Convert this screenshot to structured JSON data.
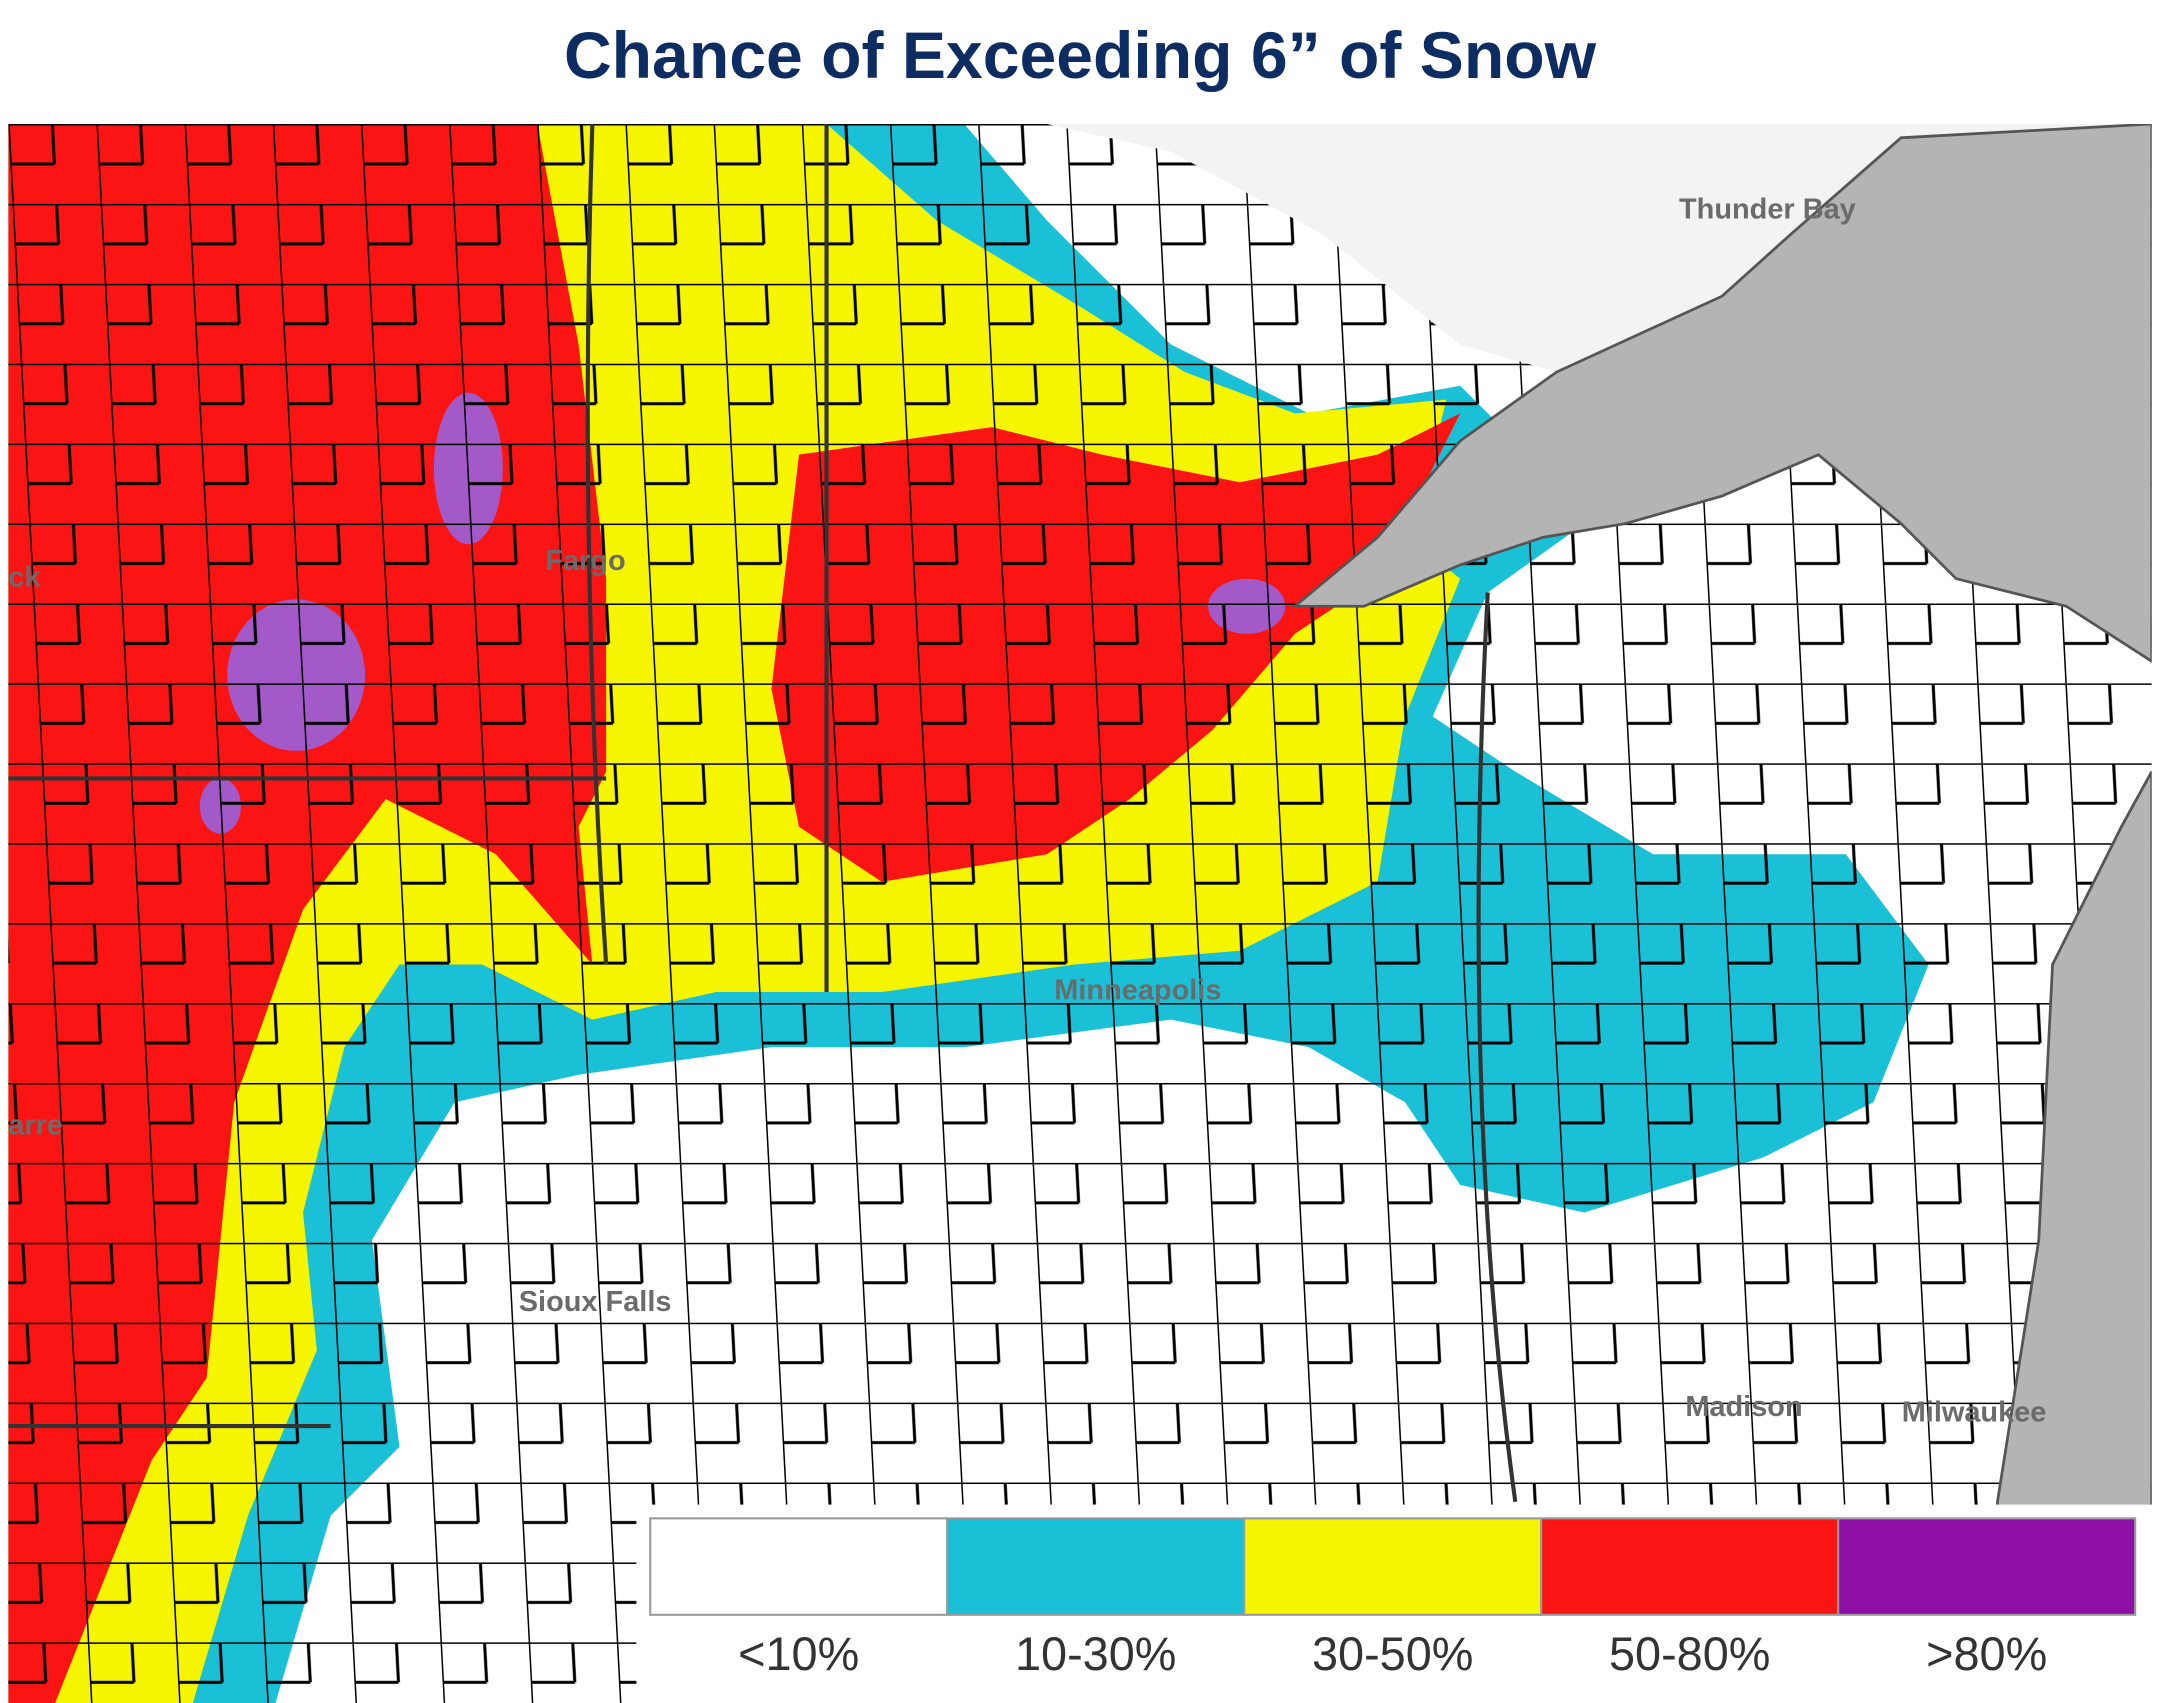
{
  "title": "Chance of Exceeding 6” of Snow",
  "cities": [
    "Thunder Bay",
    "Fargo",
    "Minneapolis",
    "Sioux Falls",
    "Madison",
    "Milwaukee",
    "ck",
    "arre"
  ],
  "legend": [
    {
      "label": "<10%",
      "color": "#ffffff"
    },
    {
      "label": "10-30%",
      "color": "#19c0d6"
    },
    {
      "label": "30-50%",
      "color": "#f5f500"
    },
    {
      "label": "50-80%",
      "color": "#fb1414"
    },
    {
      "label": ">80%",
      "color": "#8e0fa6"
    }
  ]
}
